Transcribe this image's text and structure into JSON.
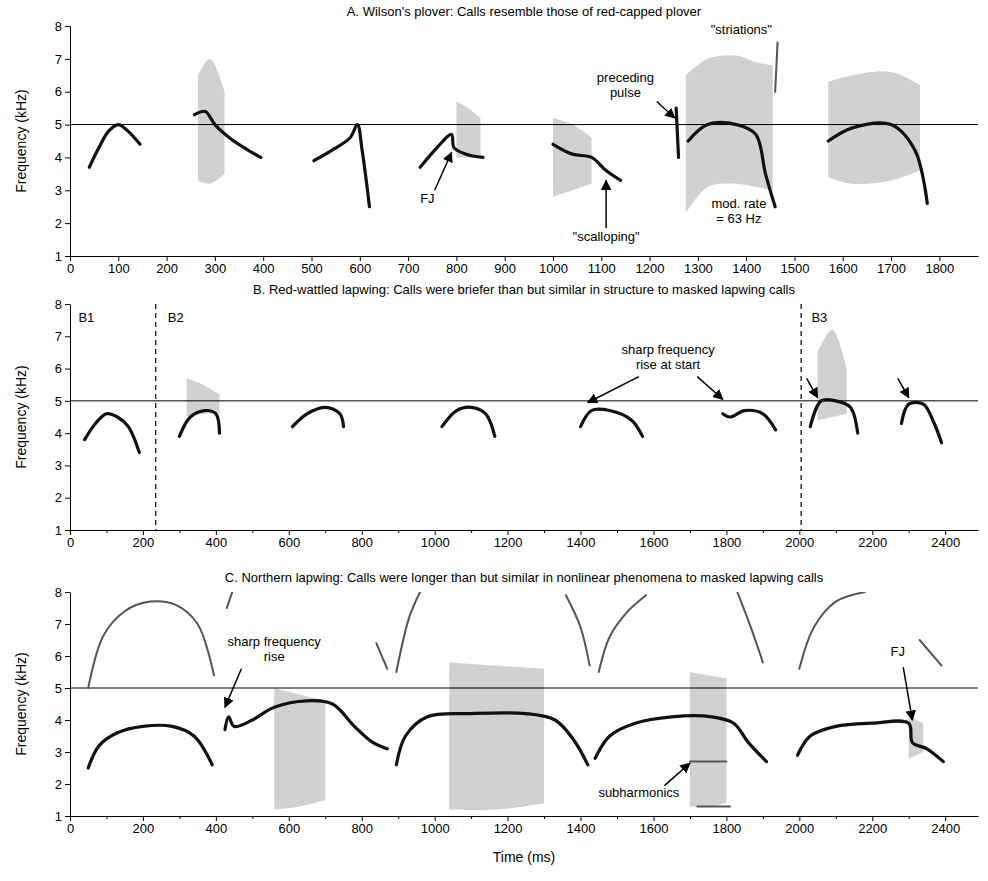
{
  "chart_data": [
    {
      "type": "line",
      "title": "A. Wilson's plover: Calls resemble those of red-capped plover",
      "y_label": "Frequency (kHz)",
      "xlim": [
        0,
        1880
      ],
      "xticks": [
        0,
        100,
        200,
        300,
        400,
        500,
        600,
        700,
        800,
        900,
        1000,
        1100,
        1200,
        1300,
        1400,
        1500,
        1600,
        1700,
        1800
      ],
      "ylim": [
        1,
        8
      ],
      "yticks": [
        1,
        2,
        3,
        4,
        5,
        6,
        7,
        8
      ],
      "hline": 5,
      "series": [
        {
          "type": "line",
          "color": "#111111",
          "x": [
            40,
            60,
            80,
            100,
            120,
            145
          ],
          "values": [
            3.7,
            4.3,
            4.8,
            5.0,
            4.8,
            4.4
          ]
        },
        {
          "type": "area",
          "color": "#8c8c8c",
          "x": [
            265,
            290,
            320
          ],
          "values": [
            6.5,
            7.0,
            6.0
          ],
          "lower": [
            3.3,
            3.2,
            3.5
          ]
        },
        {
          "type": "line",
          "color": "#111111",
          "x": [
            258,
            280,
            300,
            330,
            360,
            395
          ],
          "values": [
            5.3,
            5.4,
            5.0,
            4.6,
            4.3,
            4.0
          ]
        },
        {
          "type": "line",
          "color": "#111111",
          "x": [
            505,
            540,
            580,
            595,
            605,
            620
          ],
          "values": [
            3.9,
            4.2,
            4.6,
            5.0,
            4.2,
            2.5
          ]
        },
        {
          "type": "area",
          "color": "#8c8c8c",
          "x": [
            800,
            825,
            850
          ],
          "values": [
            5.7,
            5.5,
            5.2
          ],
          "lower": [
            4.0,
            4.0,
            4.0
          ]
        },
        {
          "type": "line",
          "color": "#111111",
          "x": [
            725,
            760,
            790,
            795,
            820,
            855
          ],
          "values": [
            3.7,
            4.3,
            4.7,
            4.3,
            4.1,
            4.0
          ]
        },
        {
          "type": "area",
          "color": "#8c8c8c",
          "x": [
            1000,
            1040,
            1080
          ],
          "values": [
            5.2,
            5.0,
            4.6
          ],
          "lower": [
            2.8,
            3.0,
            3.2
          ]
        },
        {
          "type": "line",
          "color": "#111111",
          "x": [
            1000,
            1040,
            1080,
            1110,
            1140
          ],
          "values": [
            4.4,
            4.1,
            4.0,
            3.6,
            3.3
          ]
        },
        {
          "type": "line",
          "color": "#111111",
          "x": [
            1255,
            1260
          ],
          "values": [
            5.5,
            4.0
          ]
        },
        {
          "type": "area",
          "color": "#8c8c8c",
          "x": [
            1275,
            1320,
            1380,
            1420,
            1455
          ],
          "values": [
            6.5,
            7.0,
            7.1,
            6.9,
            6.8
          ],
          "lower": [
            2.3,
            3.1,
            3.2,
            3.1,
            3.0
          ]
        },
        {
          "type": "line",
          "color": "#111111",
          "x": [
            1280,
            1320,
            1380,
            1420,
            1440,
            1460
          ],
          "values": [
            4.5,
            5.0,
            5.0,
            4.7,
            3.5,
            2.5
          ]
        },
        {
          "type": "line",
          "color": "#555555",
          "x": [
            1460,
            1465
          ],
          "values": [
            6.0,
            7.5
          ]
        },
        {
          "type": "area",
          "color": "#8c8c8c",
          "x": [
            1570,
            1620,
            1700,
            1760
          ],
          "values": [
            6.3,
            6.5,
            6.6,
            6.2
          ],
          "lower": [
            3.4,
            3.2,
            3.3,
            3.6
          ]
        },
        {
          "type": "line",
          "color": "#111111",
          "x": [
            1570,
            1620,
            1700,
            1750,
            1775
          ],
          "values": [
            4.5,
            4.9,
            5.0,
            4.2,
            2.6
          ]
        }
      ],
      "annotations": [
        {
          "text": "FJ",
          "x": 740,
          "y": 2.6,
          "arrow": [
            755,
            3.0,
            790,
            4.15
          ]
        },
        {
          "text": "preceding",
          "x": 1150,
          "y": 6.3
        },
        {
          "text": "pulse",
          "x": 1150,
          "y": 5.85,
          "arrow": [
            1215,
            5.7,
            1252,
            5.2
          ]
        },
        {
          "text": "\"striations\"",
          "x": 1390,
          "y": 7.75
        },
        {
          "text": "\"scalloping\"",
          "x": 1110,
          "y": 1.45,
          "arrow": [
            1110,
            1.85,
            1110,
            3.3
          ]
        },
        {
          "text": "mod. rate",
          "x": 1385,
          "y": 2.45
        },
        {
          "text": "= 63 Hz",
          "x": 1385,
          "y": 2.0
        }
      ]
    },
    {
      "type": "line",
      "title": "B. Red-wattled lapwing: Calls were briefer than but similar in structure to masked lapwing calls",
      "y_label": "Frequency (kHz)",
      "xlim": [
        0,
        2490
      ],
      "xticks": [
        0,
        200,
        400,
        600,
        800,
        1000,
        1200,
        1400,
        1600,
        1800,
        2000,
        2200,
        2400
      ],
      "xticks_minor": [
        100,
        300,
        500,
        700,
        900,
        1100,
        1300,
        1500,
        1700,
        1900,
        2100,
        2300
      ],
      "ylim": [
        1,
        8
      ],
      "yticks": [
        1,
        2,
        3,
        4,
        5,
        6,
        7,
        8
      ],
      "hline": 5,
      "dividers": [
        235,
        2005
      ],
      "series": [
        {
          "type": "line",
          "color": "#111111",
          "x": [
            40,
            70,
            100,
            130,
            160,
            190
          ],
          "values": [
            3.8,
            4.3,
            4.6,
            4.5,
            4.2,
            3.4
          ]
        },
        {
          "type": "area",
          "color": "#8c8c8c",
          "x": [
            320,
            365,
            410
          ],
          "values": [
            5.7,
            5.5,
            5.2
          ],
          "lower": [
            4.5,
            4.6,
            4.6
          ]
        },
        {
          "type": "line",
          "color": "#111111",
          "x": [
            300,
            330,
            370,
            400,
            410
          ],
          "values": [
            3.9,
            4.5,
            4.7,
            4.6,
            4.0
          ]
        },
        {
          "type": "line",
          "color": "#111111",
          "x": [
            610,
            650,
            700,
            740,
            750
          ],
          "values": [
            4.2,
            4.6,
            4.8,
            4.6,
            4.2
          ]
        },
        {
          "type": "line",
          "color": "#111111",
          "x": [
            1020,
            1060,
            1100,
            1140,
            1165
          ],
          "values": [
            4.2,
            4.7,
            4.8,
            4.6,
            3.9
          ]
        },
        {
          "type": "line",
          "color": "#111111",
          "x": [
            1400,
            1430,
            1480,
            1540,
            1570
          ],
          "values": [
            4.2,
            4.7,
            4.7,
            4.4,
            3.9
          ]
        },
        {
          "type": "line",
          "color": "#111111",
          "x": [
            1790,
            1810,
            1850,
            1900,
            1935
          ],
          "values": [
            4.6,
            4.5,
            4.7,
            4.6,
            4.1
          ]
        },
        {
          "type": "area",
          "color": "#8c8c8c",
          "x": [
            2050,
            2090,
            2130
          ],
          "values": [
            6.5,
            7.2,
            6.0
          ],
          "lower": [
            4.4,
            4.5,
            4.6
          ]
        },
        {
          "type": "line",
          "color": "#111111",
          "x": [
            2030,
            2060,
            2100,
            2140,
            2160
          ],
          "values": [
            4.2,
            5.0,
            5.0,
            4.8,
            4.0
          ]
        },
        {
          "type": "line",
          "color": "#111111",
          "x": [
            2280,
            2300,
            2340,
            2370,
            2390
          ],
          "values": [
            4.3,
            4.9,
            4.9,
            4.3,
            3.7
          ]
        }
      ],
      "annotations": [
        {
          "text": "B1",
          "x": 45,
          "y": 7.45
        },
        {
          "text": "B2",
          "x": 290,
          "y": 7.45
        },
        {
          "text": "B3",
          "x": 2055,
          "y": 7.45
        },
        {
          "text": "sharp frequency",
          "x": 1640,
          "y": 6.45
        },
        {
          "text": "rise at start",
          "x": 1640,
          "y": 6.0
        }
      ],
      "arrows": [
        [
          1560,
          5.75,
          1420,
          4.95
        ],
        [
          1720,
          5.75,
          1790,
          5.05
        ],
        [
          2020,
          5.7,
          2050,
          5.1
        ],
        [
          2270,
          5.7,
          2300,
          5.1
        ]
      ]
    },
    {
      "type": "line",
      "title": "C. Northern lapwing: Calls were longer than but similar in nonlinear phenomena to masked lapwing calls",
      "x_label": "Time (ms)",
      "y_label": "Frequency (kHz)",
      "xlim": [
        0,
        2490
      ],
      "xticks": [
        0,
        200,
        400,
        600,
        800,
        1000,
        1200,
        1400,
        1600,
        1800,
        2000,
        2200,
        2400
      ],
      "xticks_minor": [
        100,
        300,
        500,
        700,
        900,
        1100,
        1300,
        1500,
        1700,
        1900,
        2100,
        2300
      ],
      "ylim": [
        1,
        8
      ],
      "yticks": [
        1,
        2,
        3,
        4,
        5,
        6,
        7,
        8
      ],
      "hline": 5,
      "series": [
        {
          "type": "line",
          "color": "#111111",
          "x": [
            50,
            80,
            130,
            200,
            280,
            340,
            390
          ],
          "values": [
            2.5,
            3.2,
            3.6,
            3.8,
            3.8,
            3.5,
            2.6
          ]
        },
        {
          "type": "line",
          "color": "#555555",
          "x": [
            50,
            90,
            150,
            220,
            290,
            350,
            395
          ],
          "values": [
            5.0,
            6.6,
            7.4,
            7.7,
            7.6,
            7.0,
            5.4
          ]
        },
        {
          "type": "area",
          "color": "#8c8c8c",
          "x": [
            560,
            630,
            700
          ],
          "values": [
            5.0,
            4.8,
            4.6
          ],
          "lower": [
            1.2,
            1.3,
            1.5
          ]
        },
        {
          "type": "line",
          "color": "#111111",
          "x": [
            425,
            435,
            450,
            500,
            560,
            650,
            720,
            780,
            830,
            870
          ],
          "values": [
            3.7,
            4.1,
            3.8,
            4.0,
            4.4,
            4.6,
            4.5,
            3.8,
            3.3,
            3.1
          ]
        },
        {
          "type": "line",
          "color": "#555555",
          "x": [
            430,
            445
          ],
          "values": [
            7.5,
            8.0
          ]
        },
        {
          "type": "line",
          "color": "#555555",
          "x": [
            840,
            870
          ],
          "values": [
            6.4,
            5.6
          ]
        },
        {
          "type": "area",
          "color": "#8c8c8c",
          "x": [
            1040,
            1170,
            1300
          ],
          "values": [
            5.8,
            5.7,
            5.6
          ],
          "lower": [
            1.2,
            1.2,
            1.4
          ]
        },
        {
          "type": "line",
          "color": "#111111",
          "x": [
            895,
            920,
            980,
            1100,
            1250,
            1330,
            1380,
            1420
          ],
          "values": [
            2.6,
            3.5,
            4.1,
            4.2,
            4.2,
            4.0,
            3.4,
            2.6
          ]
        },
        {
          "type": "line",
          "color": "#555555",
          "x": [
            895,
            930,
            960
          ],
          "values": [
            5.5,
            7.2,
            8.0
          ]
        },
        {
          "type": "line",
          "color": "#555555",
          "x": [
            1360,
            1400,
            1425
          ],
          "values": [
            7.9,
            6.9,
            5.7
          ]
        },
        {
          "type": "area",
          "color": "#8c8c8c",
          "x": [
            1700,
            1750,
            1800
          ],
          "values": [
            5.5,
            5.4,
            5.3
          ],
          "lower": [
            1.3,
            1.3,
            1.4
          ]
        },
        {
          "type": "line",
          "color": "#111111",
          "x": [
            1440,
            1480,
            1550,
            1650,
            1760,
            1820,
            1860,
            1910
          ],
          "values": [
            2.8,
            3.5,
            3.9,
            4.1,
            4.1,
            3.9,
            3.3,
            2.7
          ]
        },
        {
          "type": "line",
          "color": "#555555",
          "x": [
            1450,
            1480,
            1530,
            1580
          ],
          "values": [
            5.5,
            6.6,
            7.4,
            7.9
          ]
        },
        {
          "type": "line",
          "color": "#555555",
          "x": [
            1830,
            1870,
            1900
          ],
          "values": [
            8.0,
            6.8,
            5.8
          ]
        },
        {
          "type": "line",
          "color": "#555555",
          "x": [
            1700,
            1800
          ],
          "values": [
            2.7,
            2.7
          ]
        },
        {
          "type": "line",
          "color": "#555555",
          "x": [
            1720,
            1810
          ],
          "values": [
            1.3,
            1.3
          ]
        },
        {
          "type": "area",
          "color": "#8c8c8c",
          "x": [
            2300,
            2320,
            2340
          ],
          "values": [
            4.2,
            4.0,
            3.9
          ],
          "lower": [
            2.8,
            2.9,
            3.0
          ]
        },
        {
          "type": "line",
          "color": "#111111",
          "x": [
            1995,
            2030,
            2100,
            2200,
            2300,
            2310,
            2350,
            2395
          ],
          "values": [
            2.9,
            3.5,
            3.8,
            3.9,
            3.9,
            3.3,
            3.1,
            2.7
          ]
        },
        {
          "type": "line",
          "color": "#555555",
          "x": [
            2000,
            2040,
            2100,
            2180
          ],
          "values": [
            5.6,
            6.9,
            7.7,
            8.0
          ]
        },
        {
          "type": "line",
          "color": "#555555",
          "x": [
            2330,
            2390
          ],
          "values": [
            6.5,
            5.7
          ]
        }
      ],
      "annotations": [
        {
          "text": "sharp frequency",
          "x": 560,
          "y": 6.3
        },
        {
          "text": "rise",
          "x": 560,
          "y": 5.85,
          "arrow": [
            470,
            5.6,
            425,
            4.4
          ]
        },
        {
          "text": "subharmonics",
          "x": 1560,
          "y": 1.6,
          "arrow": [
            1630,
            1.95,
            1700,
            2.65
          ]
        },
        {
          "text": "FJ",
          "x": 2270,
          "y": 6.0,
          "arrow": [
            2285,
            5.65,
            2310,
            4.0
          ]
        }
      ]
    }
  ]
}
